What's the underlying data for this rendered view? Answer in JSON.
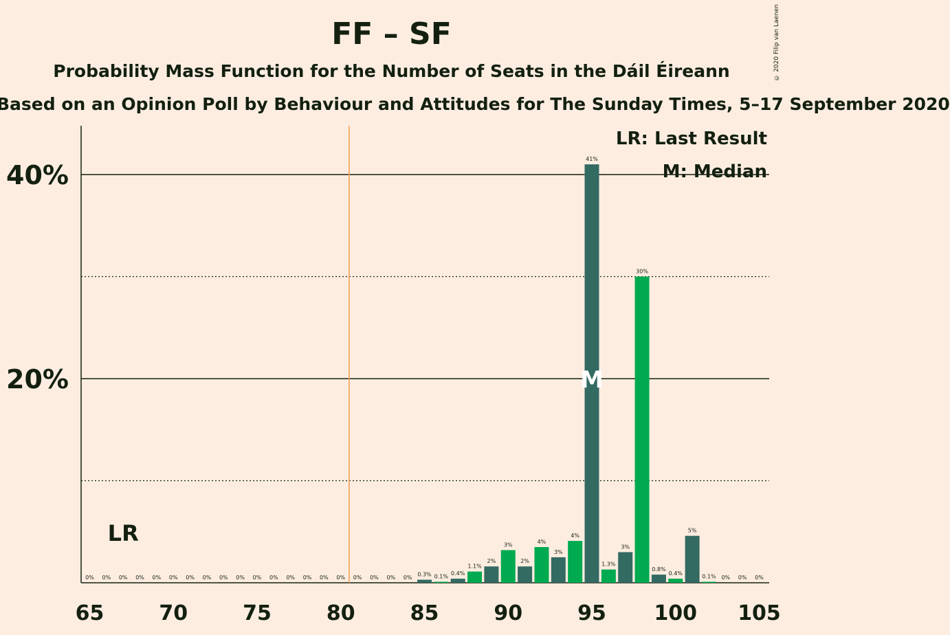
{
  "title": "FF – SF",
  "subtitle": "Probability Mass Function for the Number of Seats in the Dáil Éireann",
  "subtitle2": "Based on an Opinion Poll by Behaviour and Attitudes for The Sunday Times, 5–17 September 2020",
  "copyright": "© 2020 Filip van Laenen",
  "chart_data": {
    "type": "bar",
    "x": [
      65,
      66,
      67,
      68,
      69,
      70,
      71,
      72,
      73,
      74,
      75,
      76,
      77,
      78,
      79,
      80,
      81,
      82,
      83,
      84,
      85,
      86,
      87,
      88,
      89,
      90,
      91,
      92,
      93,
      94,
      95,
      96,
      97,
      98,
      99,
      100,
      101,
      102,
      103,
      104,
      105
    ],
    "values": [
      0,
      0,
      0,
      0,
      0,
      0,
      0,
      0,
      0,
      0,
      0,
      0,
      0,
      0,
      0,
      0,
      0,
      0,
      0,
      0,
      0.3,
      0.1,
      0.4,
      1.1,
      1.6,
      3.2,
      1.6,
      3.5,
      2.5,
      4.1,
      41,
      1.3,
      3,
      30,
      0.8,
      0.4,
      4.6,
      0.1,
      0,
      0,
      0
    ],
    "labels": [
      "0%",
      "0%",
      "0%",
      "0%",
      "0%",
      "0%",
      "0%",
      "0%",
      "0%",
      "0%",
      "0%",
      "0%",
      "0%",
      "0%",
      "0%",
      "0%",
      "0%",
      "0%",
      "0%",
      "0%",
      "0.3%",
      "0.1%",
      "0.4%",
      "1.1%",
      "2%",
      "3%",
      "2%",
      "4%",
      "3%",
      "4%",
      "41%",
      "1.3%",
      "3%",
      "30%",
      "0.8%",
      "0.4%",
      "5%",
      "0.1%",
      "0%",
      "0%",
      "0%"
    ],
    "x_ticks": [
      "65",
      "70",
      "75",
      "80",
      "85",
      "90",
      "95",
      "100",
      "105"
    ],
    "y_ticks": [
      "20%",
      "40%"
    ],
    "ylim": [
      0,
      45
    ],
    "last_result": 80.5,
    "median": 95,
    "lr_label": "LR",
    "median_marker": "M",
    "legend": [
      "LR: Last Result",
      "M: Median"
    ],
    "colors": {
      "dark": "#336a62",
      "green": "#00aa50",
      "lr_line": "#f3a05a",
      "text": "#13200f"
    }
  }
}
